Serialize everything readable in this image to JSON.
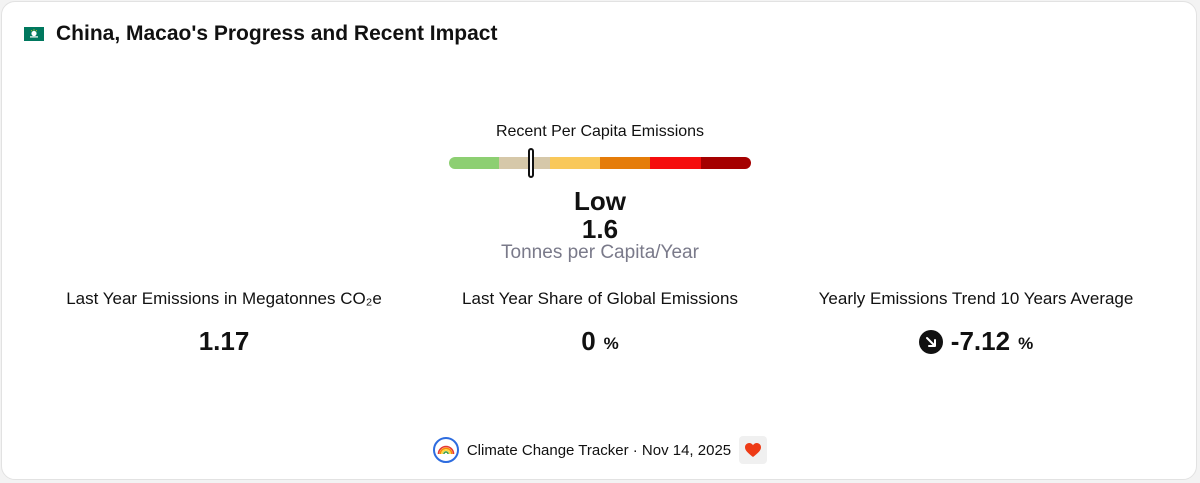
{
  "header": {
    "flag_icon": "macao-flag-icon",
    "title": "China, Macao's Progress and Recent Impact"
  },
  "gauge": {
    "label": "Recent Per Capita Emissions",
    "segment_colors": [
      "#8dcf72",
      "#d6c8a9",
      "#f9c85a",
      "#e57c09",
      "#f50d0d",
      "#a50000"
    ],
    "marker_position_fraction": 0.27,
    "level": "Low",
    "value": "1.6",
    "unit": "Tonnes per Capita/Year"
  },
  "stats": [
    {
      "label": "Last Year Emissions in Megatonnes CO₂e",
      "value": "1.17",
      "suffix": ""
    },
    {
      "label": "Last Year Share of Global Emissions",
      "value": "0",
      "suffix": "%"
    },
    {
      "label": "Yearly Emissions Trend 10 Years Average",
      "value": "-7.12",
      "suffix": "%",
      "icon": "arrow-down-right-icon"
    }
  ],
  "footer": {
    "logo_icon": "rainbow-logo-icon",
    "text": "Climate Change Tracker · Nov 14, 2025",
    "heart_icon": "heart-icon",
    "heart_color": "#ee3b16"
  }
}
